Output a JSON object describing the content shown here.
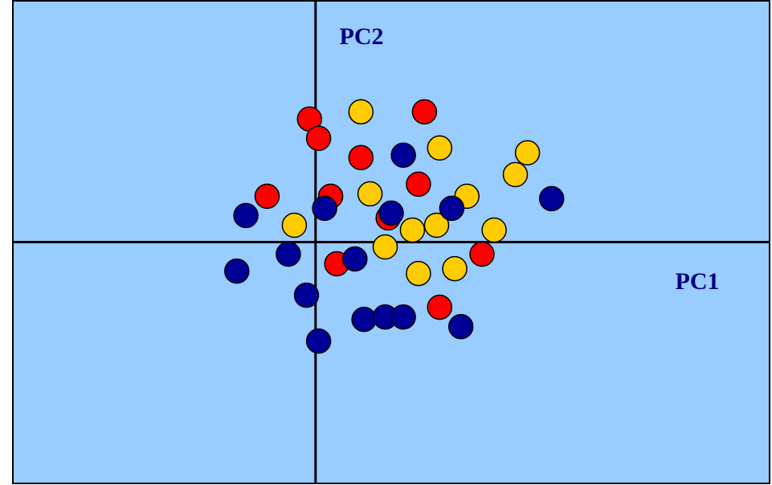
{
  "colors": {
    "background": "#99ccff",
    "border": "#000000",
    "axis_line": "#000000",
    "axis_label": "#000080"
  },
  "chart_data": {
    "type": "scatter",
    "title": "",
    "xlabel": "PC1",
    "ylabel": "PC2",
    "xlim": [
      -1.0,
      1.5
    ],
    "ylim": [
      -1.0,
      1.0
    ],
    "grid": false,
    "legend": "none",
    "series": [
      {
        "color": "#ff0000",
        "points": [
          {
            "x": -0.02,
            "y": 0.51
          },
          {
            "x": 0.01,
            "y": 0.43
          },
          {
            "x": 0.15,
            "y": 0.35
          },
          {
            "x": 0.36,
            "y": 0.54
          },
          {
            "x": 0.34,
            "y": 0.24
          },
          {
            "x": -0.16,
            "y": 0.19
          },
          {
            "x": 0.05,
            "y": 0.19
          },
          {
            "x": 0.24,
            "y": 0.1
          },
          {
            "x": 0.07,
            "y": -0.09
          },
          {
            "x": 0.55,
            "y": -0.05
          },
          {
            "x": 0.41,
            "y": -0.27
          }
        ]
      },
      {
        "color": "#ffcc00",
        "points": [
          {
            "x": 0.15,
            "y": 0.54
          },
          {
            "x": 0.41,
            "y": 0.39
          },
          {
            "x": 0.7,
            "y": 0.37
          },
          {
            "x": 0.66,
            "y": 0.28
          },
          {
            "x": 0.18,
            "y": 0.2
          },
          {
            "x": 0.5,
            "y": 0.19
          },
          {
            "x": -0.07,
            "y": 0.07
          },
          {
            "x": 0.32,
            "y": 0.05
          },
          {
            "x": 0.4,
            "y": 0.07
          },
          {
            "x": 0.59,
            "y": 0.05
          },
          {
            "x": 0.23,
            "y": -0.02
          },
          {
            "x": 0.34,
            "y": -0.13
          },
          {
            "x": 0.46,
            "y": -0.11
          }
        ]
      },
      {
        "color": "#000099",
        "points": [
          {
            "x": 0.29,
            "y": 0.36
          },
          {
            "x": 0.78,
            "y": 0.18
          },
          {
            "x": -0.23,
            "y": 0.11
          },
          {
            "x": 0.03,
            "y": 0.14
          },
          {
            "x": 0.25,
            "y": 0.12
          },
          {
            "x": 0.45,
            "y": 0.14
          },
          {
            "x": -0.09,
            "y": -0.05
          },
          {
            "x": 0.13,
            "y": -0.07
          },
          {
            "x": -0.26,
            "y": -0.12
          },
          {
            "x": -0.03,
            "y": -0.22
          },
          {
            "x": 0.16,
            "y": -0.32
          },
          {
            "x": 0.23,
            "y": -0.31
          },
          {
            "x": 0.29,
            "y": -0.31
          },
          {
            "x": 0.48,
            "y": -0.35
          },
          {
            "x": 0.01,
            "y": -0.41
          }
        ]
      }
    ]
  }
}
